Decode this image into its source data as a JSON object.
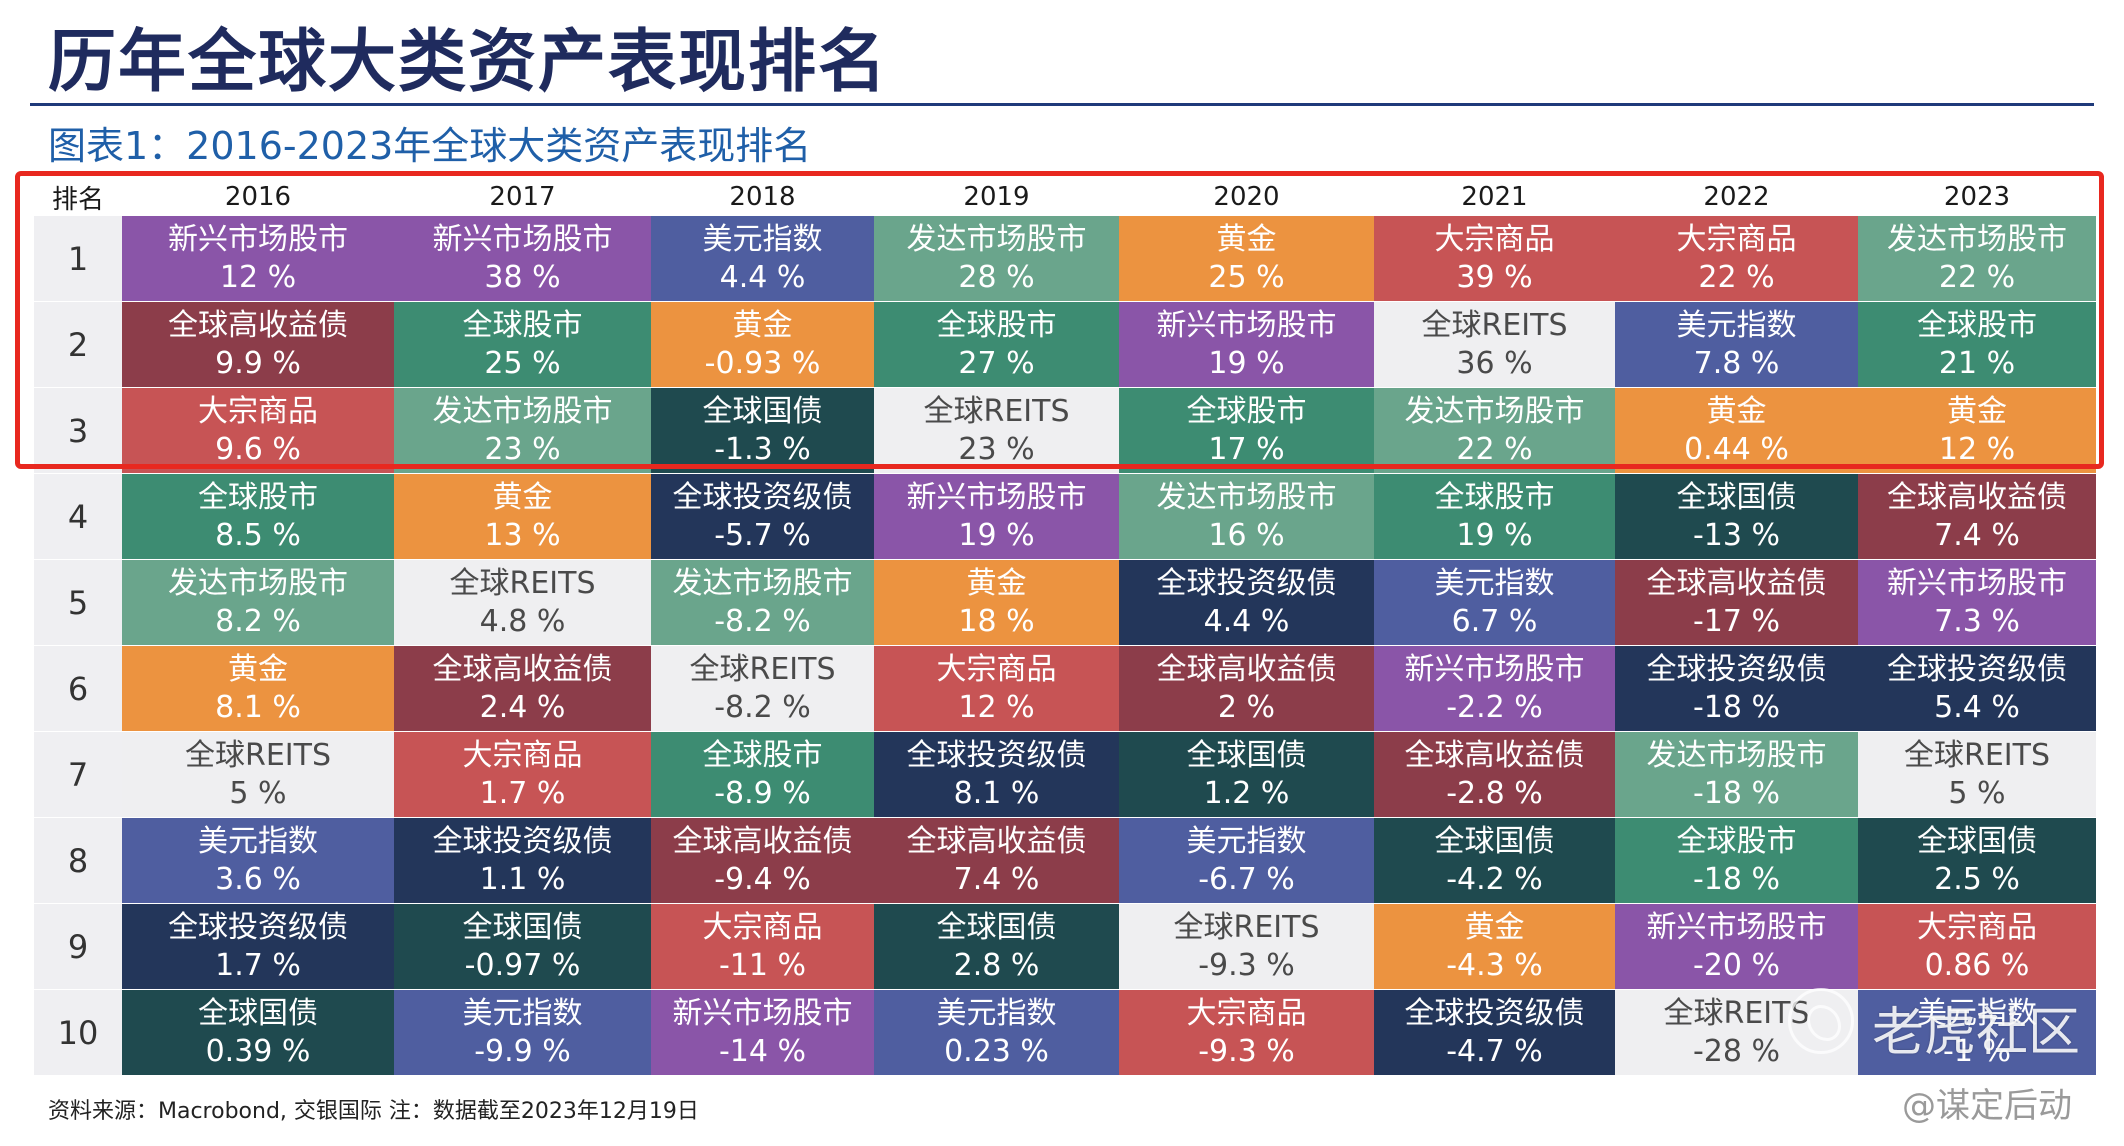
{
  "title": "历年全球大类资产表现排名",
  "subtitle": "图表1：2016-2023年全球大类资产表现排名",
  "table": {
    "rank_header": "排名",
    "years": [
      "2016",
      "2017",
      "2018",
      "2019",
      "2020",
      "2021",
      "2022",
      "2023"
    ],
    "rows": [
      {
        "rank": "1",
        "cells": [
          {
            "name": "新兴市场股市",
            "value": "12 %",
            "color": "#8a55a8"
          },
          {
            "name": "新兴市场股市",
            "value": "38 %",
            "color": "#8a55a8"
          },
          {
            "name": "美元指数",
            "value": "4.4 %",
            "color": "#4f5ea0"
          },
          {
            "name": "发达市场股市",
            "value": "28 %",
            "color": "#6aa58c"
          },
          {
            "name": "黄金",
            "value": "25 %",
            "color": "#ec9340"
          },
          {
            "name": "大宗商品",
            "value": "39 %",
            "color": "#c75455"
          },
          {
            "name": "大宗商品",
            "value": "22 %",
            "color": "#c75455"
          },
          {
            "name": "发达市场股市",
            "value": "22 %",
            "color": "#6aa58c"
          }
        ]
      },
      {
        "rank": "2",
        "cells": [
          {
            "name": "全球高收益债",
            "value": "9.9 %",
            "color": "#8c3d4a"
          },
          {
            "name": "全球股市",
            "value": "25 %",
            "color": "#3d8c72"
          },
          {
            "name": "黄金",
            "value": "-0.93 %",
            "color": "#ec9340"
          },
          {
            "name": "全球股市",
            "value": "27 %",
            "color": "#3d8c72"
          },
          {
            "name": "新兴市场股市",
            "value": "19 %",
            "color": "#8a55a8"
          },
          {
            "name": "全球REITS",
            "value": "36 %",
            "color": "#efeff1"
          },
          {
            "name": "美元指数",
            "value": "7.8 %",
            "color": "#4f5ea0"
          },
          {
            "name": "全球股市",
            "value": "21 %",
            "color": "#3d8c72"
          }
        ]
      },
      {
        "rank": "3",
        "cells": [
          {
            "name": "大宗商品",
            "value": "9.6 %",
            "color": "#c75455"
          },
          {
            "name": "发达市场股市",
            "value": "23 %",
            "color": "#6aa58c"
          },
          {
            "name": "全球国债",
            "value": "-1.3 %",
            "color": "#1f4a4f"
          },
          {
            "name": "全球REITS",
            "value": "23 %",
            "color": "#efeff1"
          },
          {
            "name": "全球股市",
            "value": "17 %",
            "color": "#3d8c72"
          },
          {
            "name": "发达市场股市",
            "value": "22 %",
            "color": "#6aa58c"
          },
          {
            "name": "黄金",
            "value": "0.44 %",
            "color": "#ec9340"
          },
          {
            "name": "黄金",
            "value": "12 %",
            "color": "#ec9340"
          }
        ]
      },
      {
        "rank": "4",
        "cells": [
          {
            "name": "全球股市",
            "value": "8.5 %",
            "color": "#3d8c72"
          },
          {
            "name": "黄金",
            "value": "13 %",
            "color": "#ec9340"
          },
          {
            "name": "全球投资级债",
            "value": "-5.7 %",
            "color": "#23365a"
          },
          {
            "name": "新兴市场股市",
            "value": "19 %",
            "color": "#8a55a8"
          },
          {
            "name": "发达市场股市",
            "value": "16 %",
            "color": "#6aa58c"
          },
          {
            "name": "全球股市",
            "value": "19 %",
            "color": "#3d8c72"
          },
          {
            "name": "全球国债",
            "value": "-13 %",
            "color": "#1f4a4f"
          },
          {
            "name": "全球高收益债",
            "value": "7.4 %",
            "color": "#8c3d4a"
          }
        ]
      },
      {
        "rank": "5",
        "cells": [
          {
            "name": "发达市场股市",
            "value": "8.2 %",
            "color": "#6aa58c"
          },
          {
            "name": "全球REITS",
            "value": "4.8 %",
            "color": "#efeff1"
          },
          {
            "name": "发达市场股市",
            "value": "-8.2 %",
            "color": "#6aa58c"
          },
          {
            "name": "黄金",
            "value": "18 %",
            "color": "#ec9340"
          },
          {
            "name": "全球投资级债",
            "value": "4.4 %",
            "color": "#23365a"
          },
          {
            "name": "美元指数",
            "value": "6.7 %",
            "color": "#4f5ea0"
          },
          {
            "name": "全球高收益债",
            "value": "-17 %",
            "color": "#8c3d4a"
          },
          {
            "name": "新兴市场股市",
            "value": "7.3 %",
            "color": "#8a55a8"
          }
        ]
      },
      {
        "rank": "6",
        "cells": [
          {
            "name": "黄金",
            "value": "8.1 %",
            "color": "#ec9340"
          },
          {
            "name": "全球高收益债",
            "value": "2.4 %",
            "color": "#8c3d4a"
          },
          {
            "name": "全球REITS",
            "value": "-8.2 %",
            "color": "#efeff1"
          },
          {
            "name": "大宗商品",
            "value": "12 %",
            "color": "#c75455"
          },
          {
            "name": "全球高收益债",
            "value": "2 %",
            "color": "#8c3d4a"
          },
          {
            "name": "新兴市场股市",
            "value": "-2.2 %",
            "color": "#8a55a8"
          },
          {
            "name": "全球投资级债",
            "value": "-18 %",
            "color": "#23365a"
          },
          {
            "name": "全球投资级债",
            "value": "5.4 %",
            "color": "#23365a"
          }
        ]
      },
      {
        "rank": "7",
        "cells": [
          {
            "name": "全球REITS",
            "value": "5 %",
            "color": "#efeff1"
          },
          {
            "name": "大宗商品",
            "value": "1.7 %",
            "color": "#c75455"
          },
          {
            "name": "全球股市",
            "value": "-8.9 %",
            "color": "#3d8c72"
          },
          {
            "name": "全球投资级债",
            "value": "8.1 %",
            "color": "#23365a"
          },
          {
            "name": "全球国债",
            "value": "1.2 %",
            "color": "#1f4a4f"
          },
          {
            "name": "全球高收益债",
            "value": "-2.8 %",
            "color": "#8c3d4a"
          },
          {
            "name": "发达市场股市",
            "value": "-18 %",
            "color": "#6aa58c"
          },
          {
            "name": "全球REITS",
            "value": "5 %",
            "color": "#efeff1"
          }
        ]
      },
      {
        "rank": "8",
        "cells": [
          {
            "name": "美元指数",
            "value": "3.6 %",
            "color": "#4f5ea0"
          },
          {
            "name": "全球投资级债",
            "value": "1.1 %",
            "color": "#23365a"
          },
          {
            "name": "全球高收益债",
            "value": "-9.4 %",
            "color": "#8c3d4a"
          },
          {
            "name": "全球高收益债",
            "value": "7.4 %",
            "color": "#8c3d4a"
          },
          {
            "name": "美元指数",
            "value": "-6.7 %",
            "color": "#4f5ea0"
          },
          {
            "name": "全球国债",
            "value": "-4.2 %",
            "color": "#1f4a4f"
          },
          {
            "name": "全球股市",
            "value": "-18 %",
            "color": "#3d8c72"
          },
          {
            "name": "全球国债",
            "value": "2.5 %",
            "color": "#1f4a4f"
          }
        ]
      },
      {
        "rank": "9",
        "cells": [
          {
            "name": "全球投资级债",
            "value": "1.7 %",
            "color": "#23365a"
          },
          {
            "name": "全球国债",
            "value": "-0.97 %",
            "color": "#1f4a4f"
          },
          {
            "name": "大宗商品",
            "value": "-11 %",
            "color": "#c75455"
          },
          {
            "name": "全球国债",
            "value": "2.8 %",
            "color": "#1f4a4f"
          },
          {
            "name": "全球REITS",
            "value": "-9.3 %",
            "color": "#efeff1"
          },
          {
            "name": "黄金",
            "value": "-4.3 %",
            "color": "#ec9340"
          },
          {
            "name": "新兴市场股市",
            "value": "-20 %",
            "color": "#8a55a8"
          },
          {
            "name": "大宗商品",
            "value": "0.86 %",
            "color": "#c75455"
          }
        ]
      },
      {
        "rank": "10",
        "cells": [
          {
            "name": "全球国债",
            "value": "0.39 %",
            "color": "#1f4a4f"
          },
          {
            "name": "美元指数",
            "value": "-9.9 %",
            "color": "#4f5ea0"
          },
          {
            "name": "新兴市场股市",
            "value": "-14 %",
            "color": "#8a55a8"
          },
          {
            "name": "美元指数",
            "value": "0.23 %",
            "color": "#4f5ea0"
          },
          {
            "name": "大宗商品",
            "value": "-9.3 %",
            "color": "#c75455"
          },
          {
            "name": "全球投资级债",
            "value": "-4.7 %",
            "color": "#23365a"
          },
          {
            "name": "全球REITS",
            "value": "-28 %",
            "color": "#efeff1"
          },
          {
            "name": "美元指数",
            "value": "-1 %",
            "color": "#4f5ea0"
          }
        ]
      }
    ]
  },
  "highlight": {
    "color": "#e8281f"
  },
  "source_note": "资料来源：Macrobond, 交银国际   注：数据截至2023年12月19日",
  "watermark": {
    "text": "老虎社区",
    "handle": "@谋定后动",
    "icon": "tiger-logo-icon"
  }
}
